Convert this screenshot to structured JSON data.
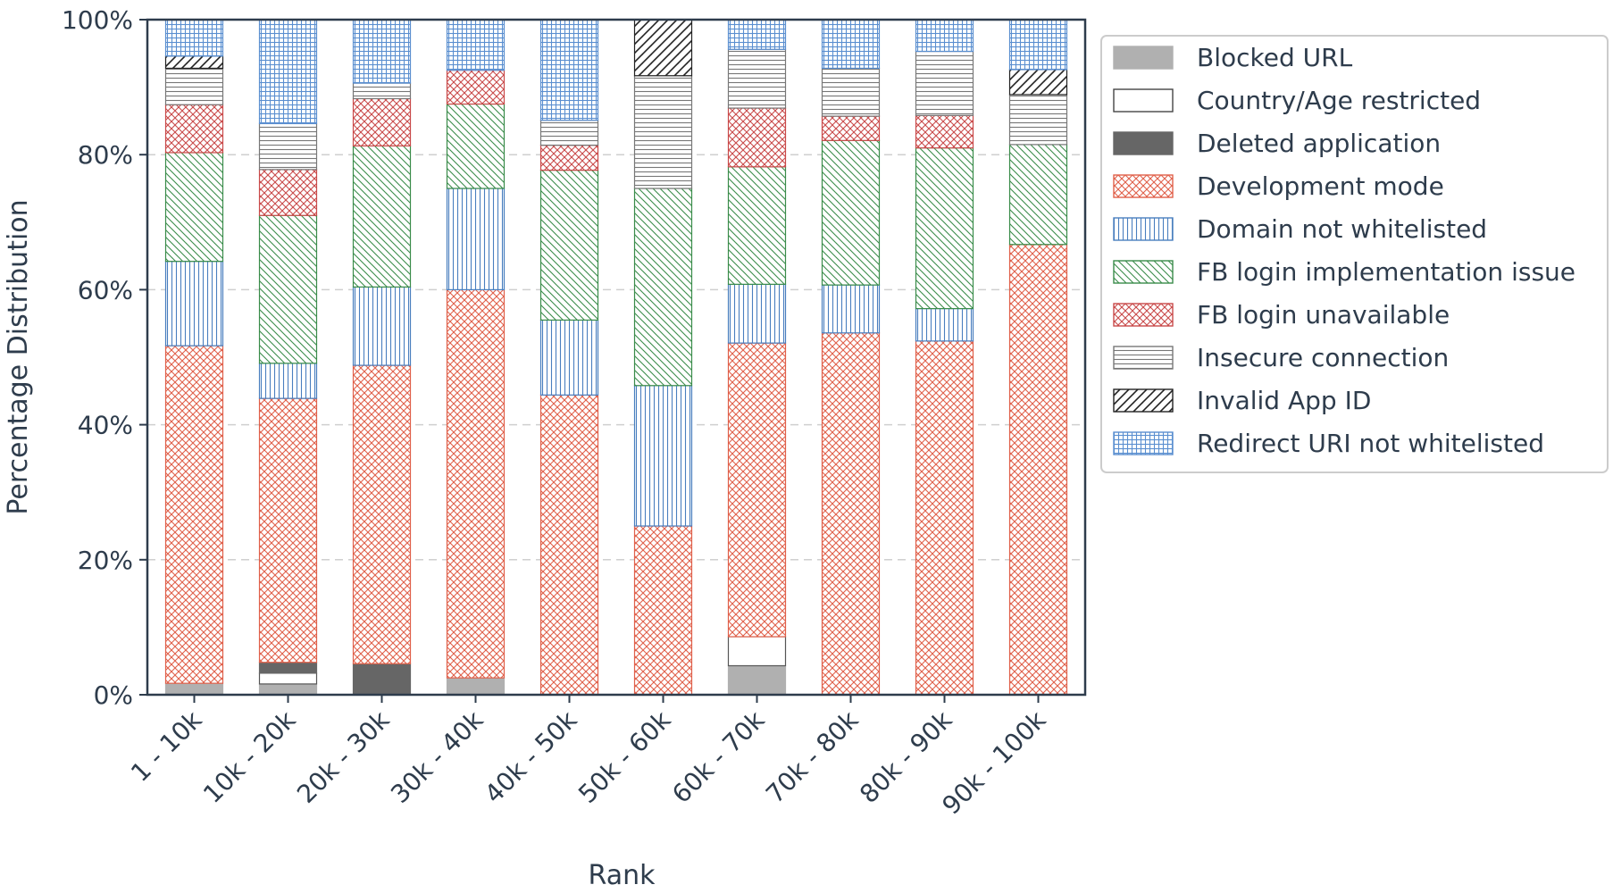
{
  "chart_data": {
    "type": "bar",
    "stacked": true,
    "title": "",
    "xlabel": "Rank",
    "ylabel": "Percentage Distribution",
    "ylim": [
      0,
      100
    ],
    "yticks": [
      "0%",
      "20%",
      "40%",
      "60%",
      "80%",
      "100%"
    ],
    "grid": "horizontal dashed",
    "legend_position": "right",
    "categories": [
      "1 - 10k",
      "10k - 20k",
      "20k - 30k",
      "30k - 40k",
      "40k - 50k",
      "50k - 60k",
      "60k - 70k",
      "70k - 80k",
      "80k - 90k",
      "90k - 100k"
    ],
    "series": [
      {
        "name": "Blocked URL",
        "color": "#b0b0b0",
        "pattern": "solid",
        "values": [
          1.7,
          1.6,
          0,
          2.5,
          0,
          0,
          4.3,
          0,
          0,
          0
        ]
      },
      {
        "name": "Country/Age restricted",
        "color": "#555555",
        "pattern": "empty",
        "values": [
          0,
          1.6,
          0,
          0,
          0,
          0,
          4.3,
          0,
          0,
          0
        ]
      },
      {
        "name": "Deleted application",
        "color": "#666666",
        "pattern": "solid",
        "values": [
          0,
          1.6,
          4.6,
          0,
          0,
          0,
          0,
          0,
          0,
          0
        ]
      },
      {
        "name": "Development mode",
        "color": "#e0604a",
        "pattern": "crosshatch",
        "values": [
          50.0,
          39.1,
          44.2,
          57.5,
          44.4,
          25.0,
          43.5,
          53.6,
          52.4,
          66.7
        ]
      },
      {
        "name": "Domain not whitelisted",
        "color": "#4a7fbf",
        "pattern": "vertical",
        "values": [
          12.5,
          5.2,
          11.6,
          15.0,
          11.1,
          20.8,
          8.7,
          7.1,
          4.8,
          0
        ]
      },
      {
        "name": "FB login implementation issue",
        "color": "#3a8c4a",
        "pattern": "diagonal-back",
        "values": [
          16.1,
          21.9,
          20.9,
          12.5,
          22.2,
          29.2,
          17.4,
          21.4,
          23.8,
          14.8
        ]
      },
      {
        "name": "FB login unavailable",
        "color": "#c94a4a",
        "pattern": "crossdiag",
        "values": [
          7.1,
          6.8,
          7.0,
          5.0,
          3.7,
          0,
          8.7,
          3.6,
          4.8,
          0
        ]
      },
      {
        "name": "Insecure connection",
        "color": "#777777",
        "pattern": "horizontal",
        "values": [
          5.4,
          6.8,
          2.3,
          0,
          3.7,
          16.7,
          8.7,
          7.1,
          9.5,
          7.4
        ]
      },
      {
        "name": "Invalid App ID",
        "color": "#222222",
        "pattern": "diagonal",
        "values": [
          1.8,
          0,
          0,
          0,
          0,
          8.3,
          0,
          0,
          0,
          3.7
        ]
      },
      {
        "name": "Redirect URI not whitelisted",
        "color": "#5b8fd0",
        "pattern": "grid",
        "values": [
          5.4,
          15.4,
          9.4,
          7.5,
          14.9,
          0,
          4.4,
          7.2,
          4.7,
          7.4
        ]
      }
    ]
  }
}
